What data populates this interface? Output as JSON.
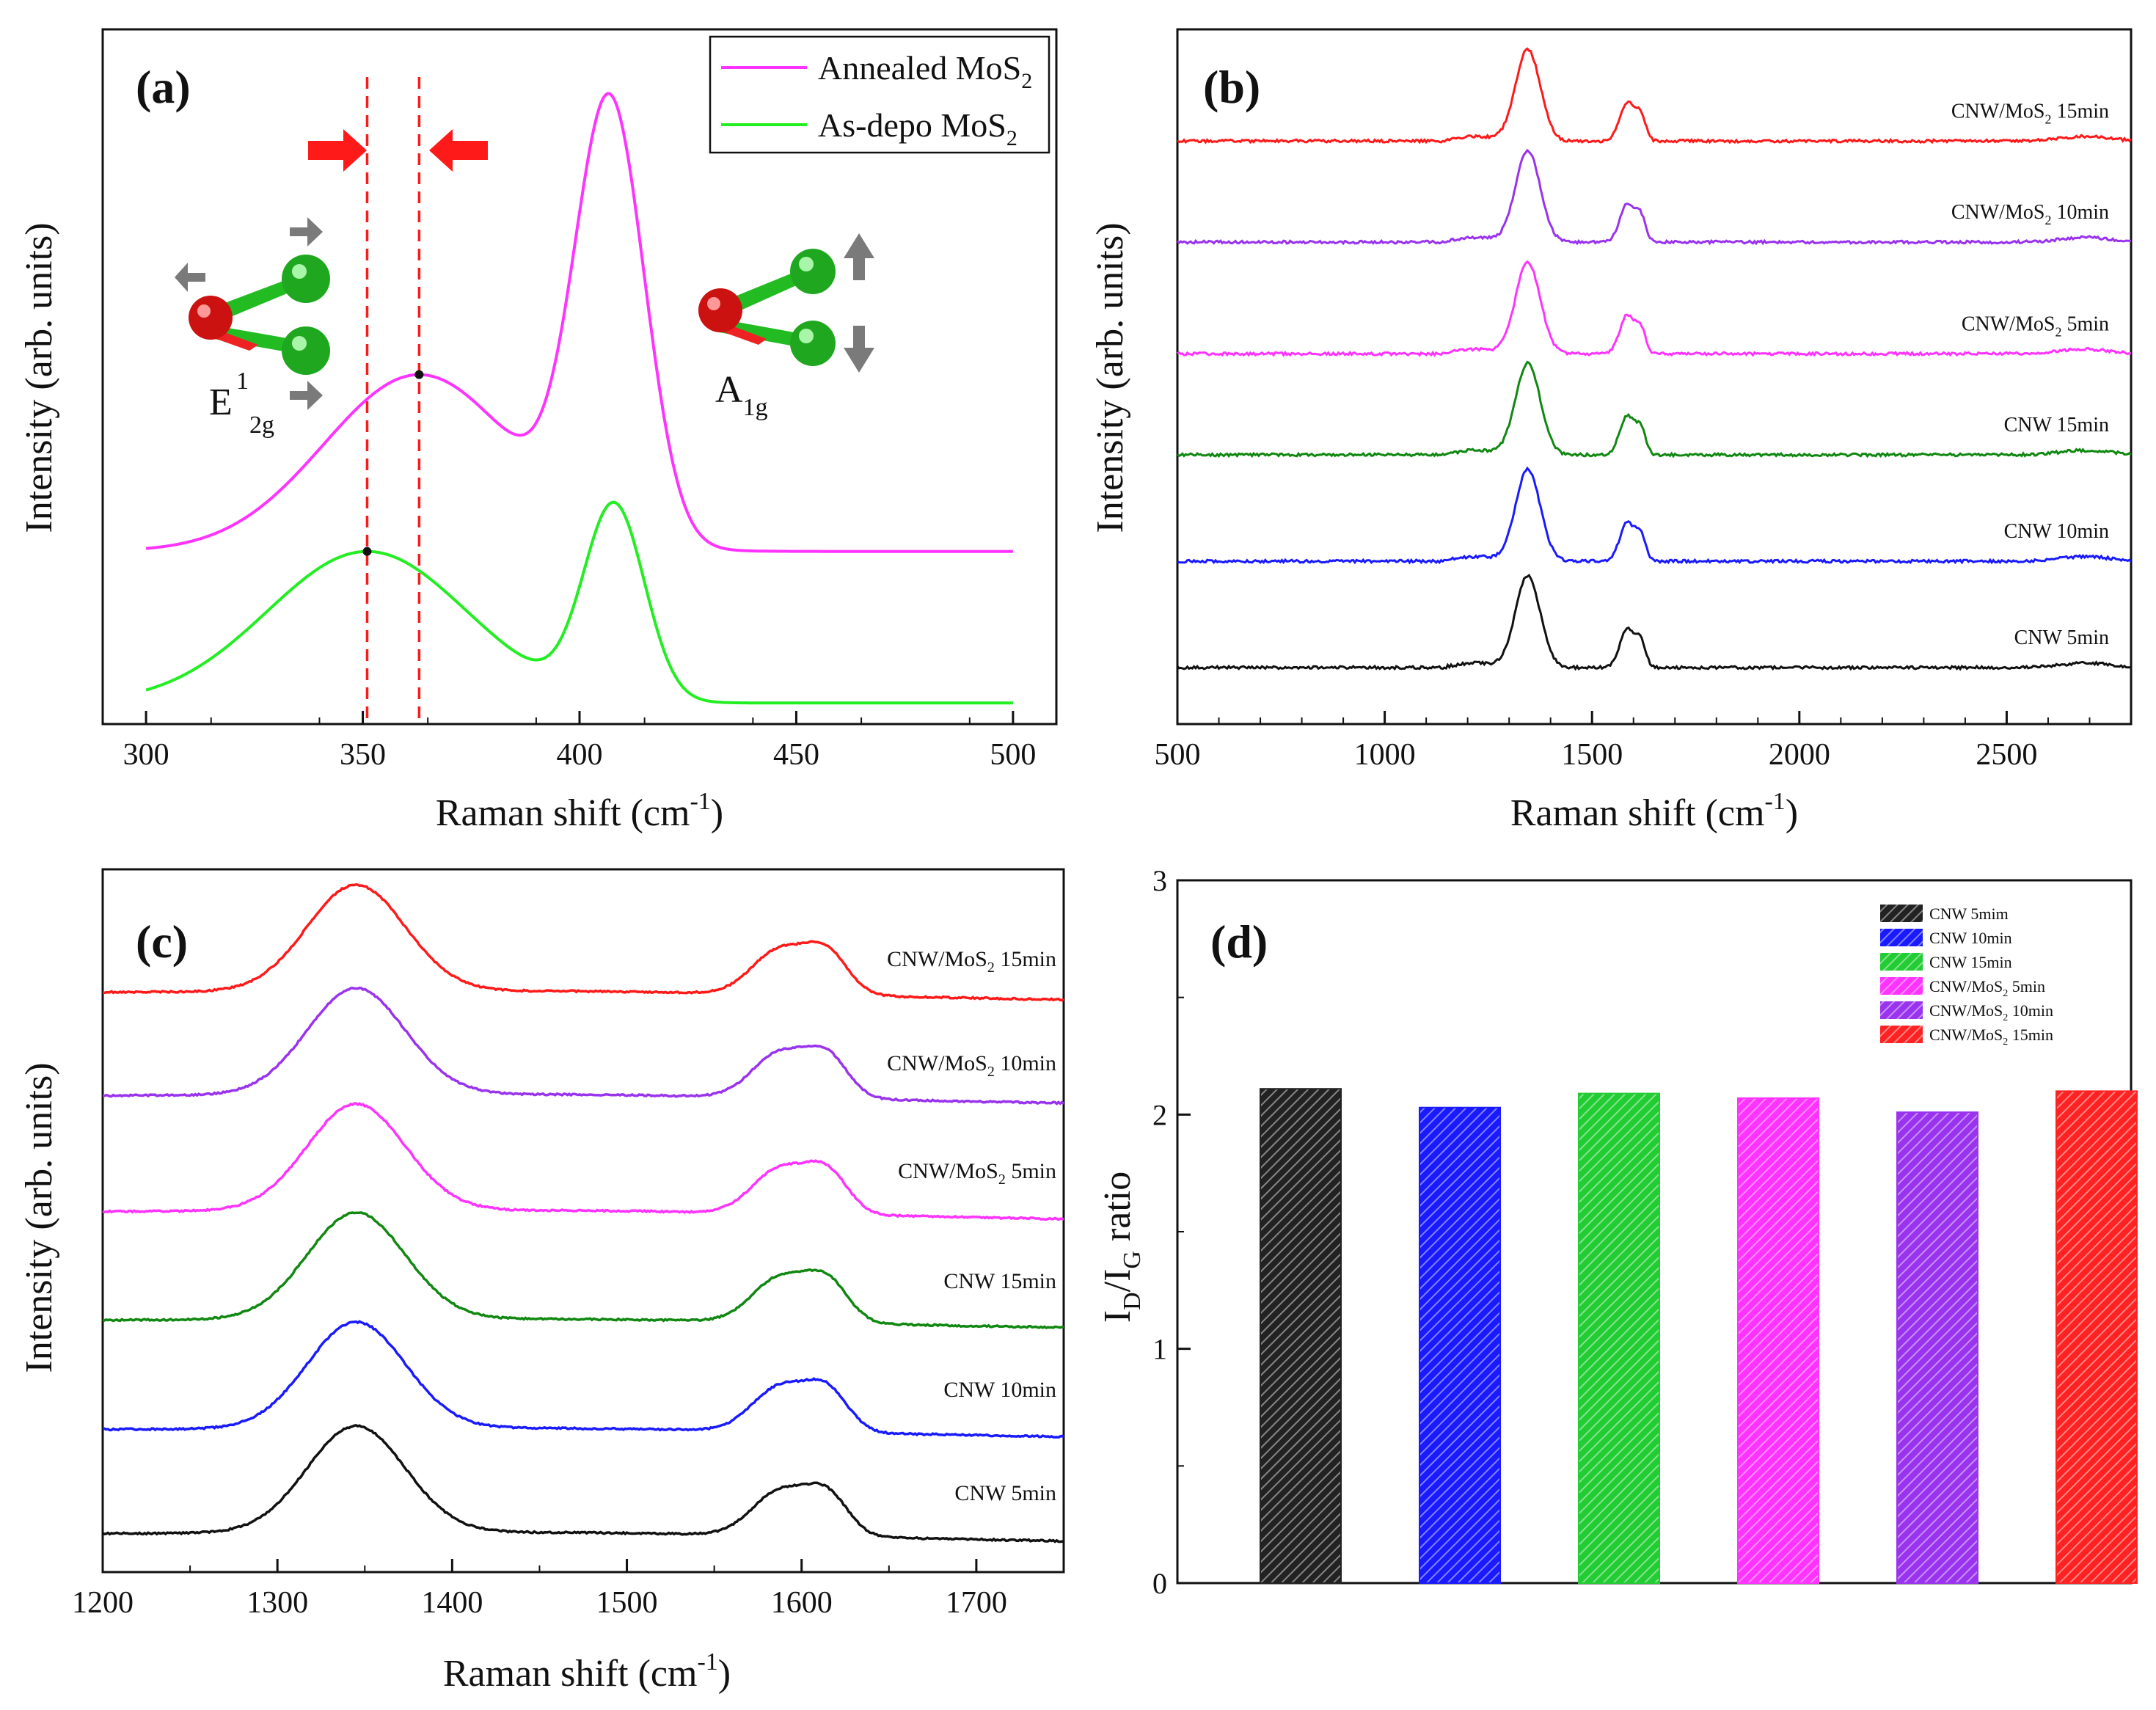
{
  "figure": {
    "colors": {
      "axis": "#111111",
      "red": "#ff1a1a",
      "gray": "#7a7a7a"
    }
  },
  "chart_data": [
    {
      "panel": "a",
      "type": "line",
      "title": "",
      "panel_label": "(a)",
      "xlabel": {
        "text": "Raman shift (cm",
        "sup": "-1",
        "close": ")"
      },
      "ylabel": "Intensity (arb. units)",
      "xlim": [
        290,
        510
      ],
      "ylim": [
        -0.05,
        1.6
      ],
      "xticks": [
        300,
        350,
        400,
        450,
        500
      ],
      "xtick_labels": [
        "300",
        "350",
        "400",
        "450",
        "500"
      ],
      "legend": {
        "position": "top-right",
        "entries": [
          {
            "name": "Annealed MoS",
            "sub": "2",
            "color": "#ff33ff"
          },
          {
            "name": "As-depo MoS",
            "sub": "2",
            "color": "#22ee22"
          }
        ]
      },
      "series": [
        {
          "name": "Annealed MoS2",
          "color": "#ff33ff",
          "baseline": 0.36,
          "peaks": [
            {
              "center": 363,
              "amp": 0.42,
              "width": 22
            },
            {
              "center": 407,
              "amp": 1.03,
              "width": 8
            }
          ]
        },
        {
          "name": "As-depo MoS2",
          "color": "#22ee22",
          "baseline": 0.0,
          "peaks": [
            {
              "center": 351,
              "amp": 0.36,
              "width": 23
            },
            {
              "center": 408,
              "amp": 0.46,
              "width": 7
            }
          ]
        }
      ],
      "vlines": [
        351,
        363
      ],
      "peak_markers": [
        {
          "x": 363,
          "series": 0
        },
        {
          "x": 351,
          "series": 1
        }
      ],
      "annotations": {
        "e2g": {
          "base": "E",
          "sup": "1",
          "sub": "2g"
        },
        "a1g": {
          "base": "A",
          "sub": "1g"
        }
      }
    },
    {
      "panel": "b",
      "type": "line",
      "panel_label": "(b)",
      "xlabel": {
        "text": "Raman shift (cm",
        "sup": "-1",
        "close": ")"
      },
      "ylabel": "Intensity (arb. units)",
      "xlim": [
        500,
        2800
      ],
      "xticks": [
        500,
        1000,
        1500,
        2000,
        2500
      ],
      "xtick_labels": [
        "500",
        "1000",
        "1500",
        "2000",
        "2500"
      ],
      "series": [
        {
          "name": "CNW 5min",
          "label": {
            "text": "CNW 5min"
          },
          "color": "#111111",
          "offset": 0.0
        },
        {
          "name": "CNW 10min",
          "label": {
            "text": "CNW 10min"
          },
          "color": "#1a1aff",
          "offset": 1.0
        },
        {
          "name": "CNW 15min",
          "label": {
            "text": "CNW 15min"
          },
          "color": "#118811",
          "offset": 2.0
        },
        {
          "name": "CNW/MoS2 5min",
          "label": {
            "text": "CNW/MoS",
            "sub": "2",
            "after": " 5min"
          },
          "color": "#ff33ff",
          "offset": 2.95
        },
        {
          "name": "CNW/MoS2 10min",
          "label": {
            "text": "CNW/MoS",
            "sub": "2",
            "after": " 10min"
          },
          "color": "#9933ee",
          "offset": 4.0
        },
        {
          "name": "CNW/MoS2 15min",
          "label": {
            "text": "CNW/MoS",
            "sub": "2",
            "after": " 15min"
          },
          "color": "#ff1a1a",
          "offset": 4.95
        }
      ],
      "peaks": [
        {
          "center": 1345,
          "amp": 1.0,
          "width": 30
        },
        {
          "center": 1585,
          "amp": 0.42,
          "width": 18
        },
        {
          "center": 1618,
          "amp": 0.25,
          "width": 12
        },
        {
          "center": 2690,
          "amp": 0.05,
          "width": 60
        }
      ]
    },
    {
      "panel": "c",
      "type": "line",
      "panel_label": "(c)",
      "xlabel": {
        "text": "Raman shift (cm",
        "sup": "-1",
        "close": ")"
      },
      "ylabel": "Intensity (arb. units)",
      "xlim": [
        1200,
        1750
      ],
      "xticks": [
        1200,
        1300,
        1400,
        1500,
        1600,
        1700
      ],
      "xtick_labels": [
        "1200",
        "1300",
        "1400",
        "1500",
        "1600",
        "1700"
      ],
      "series": [
        {
          "name": "CNW 5min",
          "label": {
            "text": "CNW 5min"
          },
          "color": "#111111"
        },
        {
          "name": "CNW 10min",
          "label": {
            "text": "CNW 10min"
          },
          "color": "#1a1aff"
        },
        {
          "name": "CNW 15min",
          "label": {
            "text": "CNW 15min"
          },
          "color": "#118811"
        },
        {
          "name": "CNW/MoS2 5min",
          "label": {
            "text": "CNW/MoS",
            "sub": "2",
            "after": " 5min"
          },
          "color": "#ff33ff"
        },
        {
          "name": "CNW/MoS2 10min",
          "label": {
            "text": "CNW/MoS",
            "sub": "2",
            "after": " 10min"
          },
          "color": "#9933ee"
        },
        {
          "name": "CNW/MoS2 15min",
          "label": {
            "text": "CNW/MoS",
            "sub": "2",
            "after": " 15min"
          },
          "color": "#ff1a1a"
        }
      ],
      "peaks": [
        {
          "center": 1345,
          "amp": 1.0,
          "width": 28
        },
        {
          "center": 1588,
          "amp": 0.42,
          "width": 16
        },
        {
          "center": 1615,
          "amp": 0.36,
          "width": 12
        }
      ]
    },
    {
      "panel": "d",
      "type": "bar",
      "panel_label": "(d)",
      "ylabel": {
        "main": "I",
        "sub1": "D",
        "mid": "/I",
        "sub2": "G",
        "end": " ratio"
      },
      "ylim": [
        0,
        3
      ],
      "yticks": [
        0,
        1,
        2,
        3
      ],
      "ytick_labels": [
        "0",
        "1",
        "2",
        "3"
      ],
      "categories": [
        "CNW 5mim",
        "CNW 10min",
        "CNW 15min",
        "CNW/MoS2 5min",
        "CNW/MoS2 10min",
        "CNW/MoS2 15min"
      ],
      "values": [
        2.11,
        2.03,
        2.09,
        2.07,
        2.01,
        2.1
      ],
      "colors": [
        "#222222",
        "#1a1aff",
        "#22cc33",
        "#ff33ff",
        "#9933ee",
        "#ff2222"
      ],
      "legend": {
        "position": "top-right",
        "entries": [
          {
            "text": "CNW 5mim"
          },
          {
            "text": "CNW 10min"
          },
          {
            "text": "CNW 15min"
          },
          {
            "text": "CNW/MoS",
            "sub": "2",
            "after": " 5min"
          },
          {
            "text": "CNW/MoS",
            "sub": "2",
            "after": " 10min"
          },
          {
            "text": "CNW/MoS",
            "sub": "2",
            "after": " 15min"
          }
        ]
      }
    }
  ]
}
